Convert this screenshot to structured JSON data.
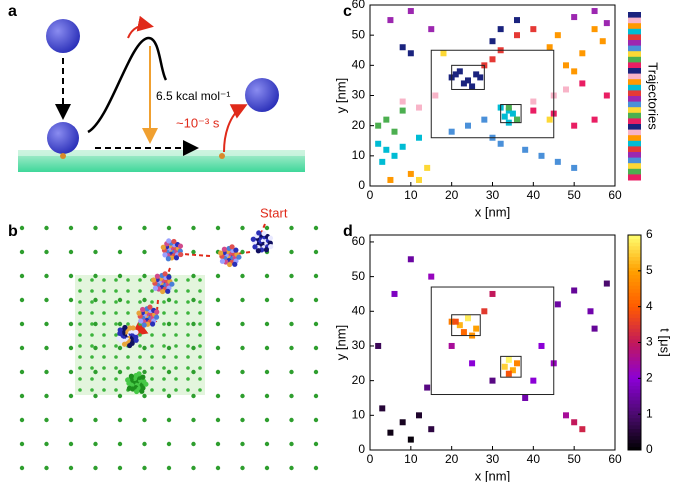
{
  "panel_labels": [
    "a",
    "b",
    "c",
    "d"
  ],
  "schematic_a": {
    "energy": "6.5 kcal mol⁻¹",
    "rate": "~10⁻³ s"
  },
  "schematic_b": {
    "start": "Start"
  },
  "chart_data": [
    {
      "type": "scatter",
      "xlabel": "x [nm]",
      "ylabel": "y [nm]",
      "colorbar_label": "Trajectories",
      "xlim": [
        0,
        60
      ],
      "ylim": [
        0,
        60
      ],
      "xticks": [
        0,
        10,
        20,
        30,
        40,
        50,
        60
      ],
      "yticks": [
        0,
        10,
        20,
        30,
        40,
        50,
        60
      ],
      "boxes": [
        {
          "x": [
            15,
            45
          ],
          "y": [
            16,
            45
          ]
        },
        {
          "x": [
            20,
            28
          ],
          "y": [
            32,
            40
          ]
        },
        {
          "x": [
            32,
            37
          ],
          "y": [
            21,
            27
          ]
        }
      ],
      "series": [
        {
          "color": "#1a237e",
          "x": [
            20,
            22,
            24,
            26,
            23,
            25,
            21,
            27,
            30,
            32,
            36,
            10,
            8
          ],
          "y": [
            36,
            38,
            35,
            37,
            34,
            33,
            37,
            36,
            48,
            52,
            55,
            44,
            46
          ]
        },
        {
          "color": "#00bcd4",
          "x": [
            33,
            34,
            35,
            36,
            34,
            32,
            2,
            4,
            6,
            8,
            3,
            12
          ],
          "y": [
            23,
            25,
            24,
            22,
            21,
            26,
            14,
            12,
            10,
            13,
            8,
            16
          ]
        },
        {
          "color": "#4a90d9",
          "x": [
            20,
            24,
            28,
            30,
            32,
            38,
            42,
            46,
            50
          ],
          "y": [
            18,
            20,
            22,
            16,
            14,
            12,
            10,
            8,
            6
          ]
        },
        {
          "color": "#e91e63",
          "x": [
            40,
            45,
            50,
            55,
            58,
            52
          ],
          "y": [
            25,
            24,
            20,
            22,
            30,
            34
          ]
        },
        {
          "color": "#ff9800",
          "x": [
            48,
            50,
            52,
            46,
            44,
            5,
            10,
            55,
            57
          ],
          "y": [
            40,
            38,
            44,
            50,
            46,
            2,
            4,
            52,
            48
          ]
        },
        {
          "color": "#9c27b0",
          "x": [
            5,
            10,
            15,
            50,
            55,
            58
          ],
          "y": [
            55,
            58,
            52,
            56,
            58,
            54
          ]
        },
        {
          "color": "#4caf50",
          "x": [
            2,
            4,
            6,
            8,
            34,
            36
          ],
          "y": [
            20,
            22,
            18,
            25,
            26,
            22
          ]
        },
        {
          "color": "#f8b4c8",
          "x": [
            8,
            12,
            16,
            40,
            45,
            48
          ],
          "y": [
            28,
            26,
            30,
            28,
            30,
            32
          ]
        },
        {
          "color": "#e53935",
          "x": [
            28,
            30,
            32,
            36,
            40
          ],
          "y": [
            40,
            42,
            45,
            50,
            52
          ]
        },
        {
          "color": "#fdd835",
          "x": [
            12,
            14,
            18,
            44
          ],
          "y": [
            2,
            6,
            44,
            22
          ]
        }
      ]
    },
    {
      "type": "scatter",
      "xlabel": "x [nm]",
      "ylabel": "y [nm]",
      "colorbar_label": "t [μs]",
      "xlim": [
        0,
        60
      ],
      "ylim": [
        0,
        62
      ],
      "xticks": [
        0,
        10,
        20,
        30,
        40,
        50,
        60
      ],
      "yticks": [
        0,
        10,
        20,
        30,
        40,
        50,
        60
      ],
      "clim": [
        0,
        6
      ],
      "cticks": [
        0,
        1,
        2,
        3,
        4,
        5,
        6
      ],
      "colormap": [
        "#000000",
        "#4b0a6e",
        "#8b00d6",
        "#c2185b",
        "#ff5a00",
        "#ffa000",
        "#ffff70"
      ],
      "boxes": [
        {
          "x": [
            15,
            45
          ],
          "y": [
            16,
            47
          ]
        },
        {
          "x": [
            20,
            27
          ],
          "y": [
            33,
            39
          ]
        },
        {
          "x": [
            32,
            37
          ],
          "y": [
            21,
            27
          ]
        }
      ],
      "series": [
        {
          "x": [
            5,
            8,
            10,
            3,
            12,
            15,
            20,
            22,
            24,
            26,
            23,
            21,
            25,
            28,
            30,
            33,
            34,
            35,
            36,
            34,
            40,
            45,
            50,
            52,
            55,
            58,
            48,
            10,
            15,
            6,
            2,
            30,
            38,
            42,
            20,
            25,
            46,
            50,
            54,
            14
          ],
          "y": [
            5,
            8,
            3,
            12,
            10,
            6,
            37,
            36,
            38,
            35,
            34,
            37,
            33,
            40,
            45,
            24,
            26,
            23,
            25,
            22,
            20,
            25,
            8,
            6,
            35,
            48,
            10,
            55,
            50,
            45,
            30,
            20,
            15,
            30,
            30,
            25,
            42,
            46,
            40,
            18
          ],
          "t": [
            0.2,
            0.3,
            0.1,
            0.5,
            0.4,
            0.6,
            4.5,
            5.2,
            5.8,
            5,
            4.2,
            3.8,
            4.8,
            3.5,
            3,
            5.5,
            5.9,
            5.1,
            4.6,
            3.9,
            2,
            2.2,
            3,
            3.2,
            1.4,
            1,
            2.5,
            1.5,
            2.2,
            1.8,
            0.8,
            1.2,
            1.6,
            2,
            2.5,
            2,
            1.5,
            1.4,
            1.6,
            1.2
          ]
        }
      ]
    }
  ]
}
